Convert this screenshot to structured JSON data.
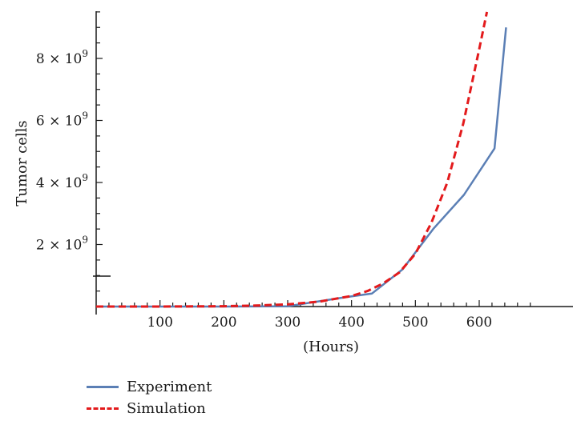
{
  "chart_data": {
    "type": "line",
    "xlabel": "(Hours)",
    "ylabel": "Tumor cells",
    "xlim": [
      0,
      680
    ],
    "ylim": [
      0,
      9500000000
    ],
    "x_ticks": [
      100,
      200,
      300,
      400,
      500,
      600
    ],
    "x_tick_labels": [
      "100",
      "200",
      "300",
      "400",
      "500",
      "600"
    ],
    "y_ticks": [
      2000000000,
      4000000000,
      6000000000,
      8000000000
    ],
    "y_tick_mantissas": [
      "2",
      "4",
      "6",
      "8"
    ],
    "y_tick_base": "× 10",
    "y_tick_exponent": "9",
    "grid": false,
    "legend_position": "bottom-left",
    "series": [
      {
        "name": "Experiment",
        "color": "#5b7fb5",
        "style": "solid",
        "x": [
          0,
          100,
          200,
          300,
          390,
          432,
          480,
          528,
          576,
          624,
          642
        ],
        "y": [
          0,
          0,
          0,
          10000000,
          300000000,
          420000000,
          1200000000,
          2500000000,
          3600000000,
          5100000000,
          9000000000
        ]
      },
      {
        "name": "Simulation",
        "color": "#e31a1c",
        "style": "dashed",
        "x": [
          0,
          100,
          200,
          250,
          300,
          350,
          400,
          425,
          450,
          475,
          500,
          525,
          550,
          575,
          600,
          612
        ],
        "y": [
          0,
          0,
          10000000,
          30000000,
          70000000,
          160000000,
          340000000,
          500000000,
          750000000,
          1100000000,
          1700000000,
          2700000000,
          4000000000,
          5900000000,
          8300000000,
          9500000000
        ]
      }
    ]
  }
}
